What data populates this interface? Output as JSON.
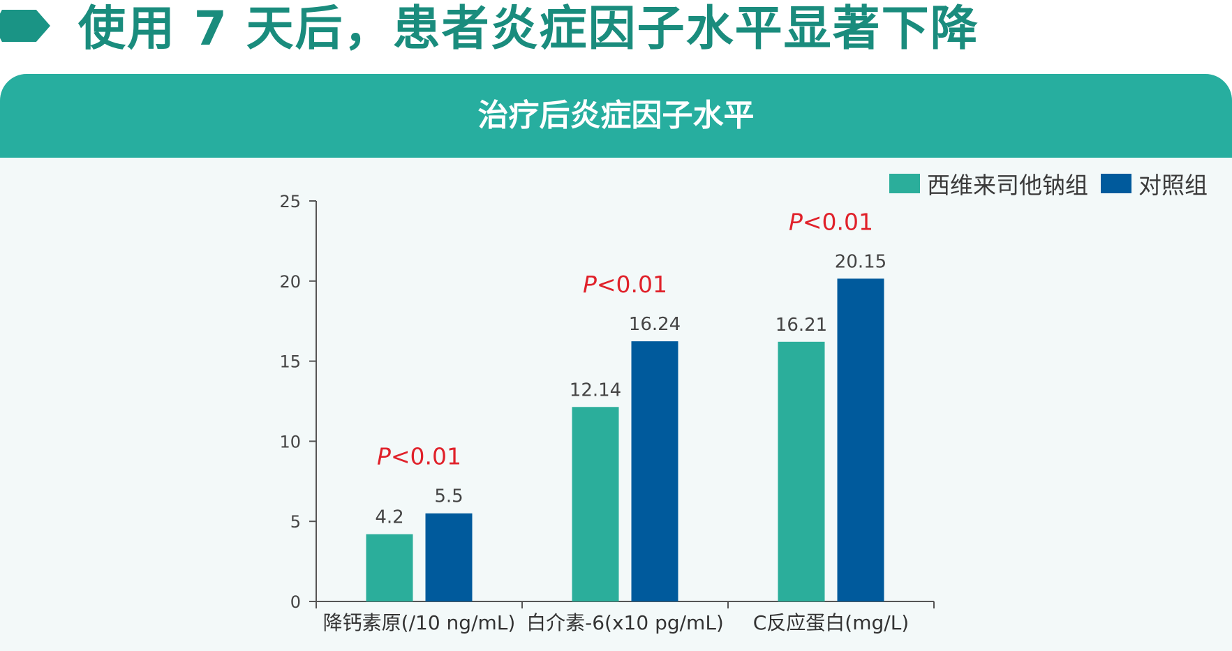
{
  "headline": "使用 7 天后，患者炎症因子水平显著下降",
  "panel_title": "治疗后炎症因子水平",
  "colors": {
    "sivelestat": "#2bae9b",
    "control": "#005a9c",
    "accent": "#1a9485",
    "p_value": "#e0212a"
  },
  "chart_data": {
    "type": "bar",
    "title": "治疗后炎症因子水平",
    "categories": [
      "降钙素原(/10 ng/mL)",
      "白介素-6(x10 pg/mL)",
      "C反应蛋白(mg/L)"
    ],
    "series": [
      {
        "name": "西维来司他钠组",
        "values": [
          4.2,
          12.14,
          16.21
        ],
        "labels": [
          "4.2",
          "12.14",
          "16.21"
        ]
      },
      {
        "name": "对照组",
        "values": [
          5.5,
          16.24,
          20.15
        ],
        "labels": [
          "5.5",
          "16.24",
          "20.15"
        ]
      }
    ],
    "annotations": [
      "P<0.01",
      "P<0.01",
      "P<0.01"
    ],
    "ylim": [
      0,
      25
    ],
    "yticks": [
      "0",
      "5",
      "10",
      "15",
      "20",
      "25"
    ],
    "legend_position": "top-right",
    "grid": false
  }
}
